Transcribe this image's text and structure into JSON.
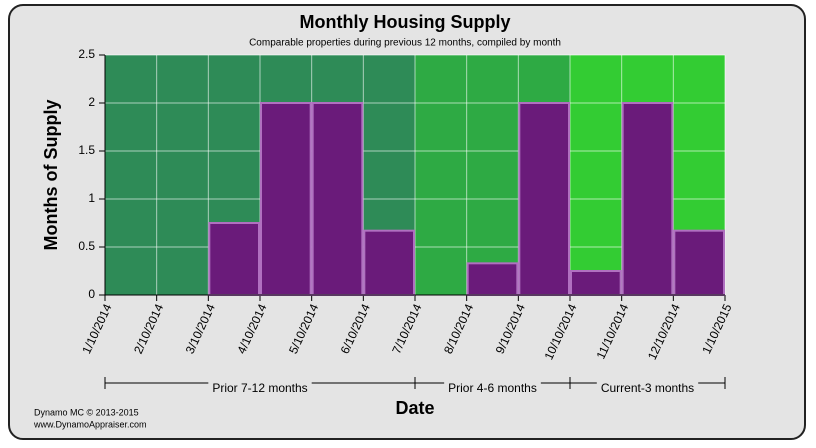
{
  "chart_data": {
    "type": "histogram",
    "title": "Monthly Housing Supply",
    "subtitle": "Comparable properties during previous 12 months, compiled by month",
    "ylabel": "Months of Supply",
    "xlabel": "Date",
    "bins": [
      "1/10/2014",
      "2/10/2014",
      "3/10/2014",
      "4/10/2014",
      "5/10/2014",
      "6/10/2014",
      "7/10/2014",
      "8/10/2014",
      "9/10/2014",
      "10/10/2014",
      "11/10/2014",
      "12/10/2014",
      "1/10/2015"
    ],
    "values": [
      0,
      0,
      0.75,
      2,
      2,
      0.67,
      0,
      0.33,
      2,
      0.25,
      2,
      0.67
    ],
    "color": "#6a1b7a",
    "ylim": [
      0,
      2.5
    ],
    "yticks": [
      0,
      0.5,
      1,
      1.5,
      2,
      2.5
    ],
    "grid": true,
    "regions": [
      {
        "label": "Prior 7-12 months",
        "from": "1/10/2014",
        "to": "7/10/2014",
        "color": "#2e8b57"
      },
      {
        "label": "Prior 4-6 months",
        "from": "7/10/2014",
        "to": "10/10/2014",
        "color": "#2eaa44"
      },
      {
        "label": "Current-3 months",
        "from": "10/10/2014",
        "to": "1/10/2015",
        "color": "#33cc33"
      }
    ]
  },
  "footer": {
    "line1": "Dynamo MC   © 2013-2015",
    "line2": "www.DynamoAppraiser.com"
  }
}
